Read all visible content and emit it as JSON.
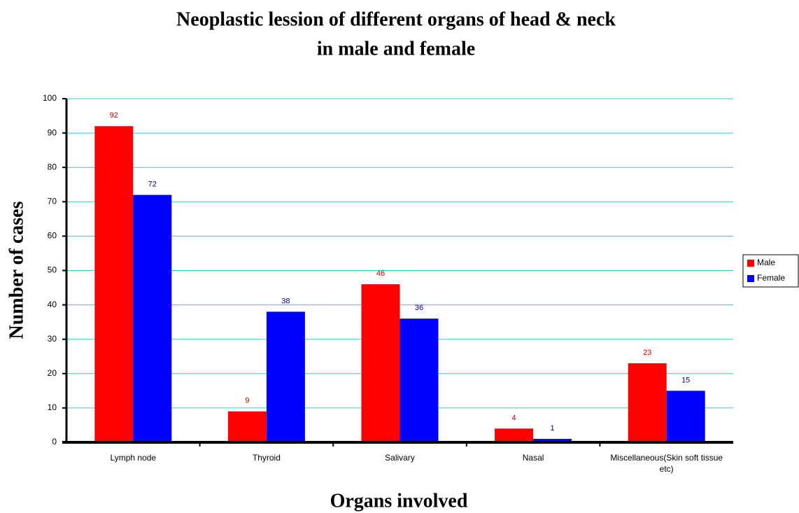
{
  "chart_data": {
    "type": "bar",
    "title": "Neoplastic lession of different organs of head & neck",
    "subtitle": "in male and female",
    "x_label": "Organs involved",
    "y_label": "Number of cases",
    "categories": [
      "Lymph node",
      "Thyroid",
      "Salivary",
      "Nasal",
      "Miscellaneous(Skin soft tissue etc)"
    ],
    "series": [
      {
        "name": "Male",
        "color": "#ff0000",
        "label_color": "#cc0000",
        "values": [
          92,
          9,
          46,
          4,
          23
        ]
      },
      {
        "name": "Female",
        "color": "#0000ff",
        "label_color": "#0000aa",
        "values": [
          72,
          38,
          36,
          1,
          15
        ]
      }
    ],
    "ylim": [
      0,
      100
    ],
    "yticks": [
      0,
      10,
      20,
      30,
      40,
      50,
      60,
      70,
      80,
      90,
      100
    ],
    "grid": true,
    "grid_color": "#33cccc",
    "legend": "right"
  }
}
